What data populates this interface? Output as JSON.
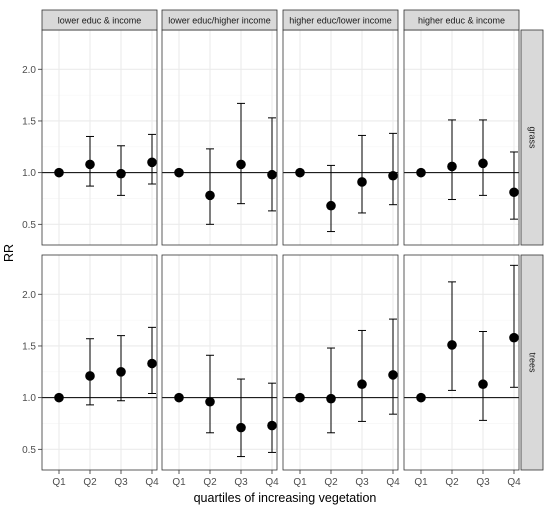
{
  "chart_data": {
    "type": "scatter",
    "subtype": "faceted point estimates with error bars",
    "ylabel": "RR",
    "xlabel": "quartiles of increasing vegetation",
    "categories": [
      "Q1",
      "Q2",
      "Q3",
      "Q4"
    ],
    "ylim": [
      0.3,
      2.38
    ],
    "yticks": [
      0.5,
      1.0,
      1.5,
      2.0
    ],
    "ytick_labels": [
      "0.5",
      "1.0",
      "1.5",
      "2.0"
    ],
    "reference_line": 1.0,
    "grid": true,
    "columns": [
      "lower educ & income",
      "lower educ/higher income",
      "higher educ/lower income",
      "higher educ & income"
    ],
    "rows": [
      "grass",
      "trees"
    ],
    "panels": [
      [
        {
          "rr": [
            1.0,
            1.08,
            0.99,
            1.1
          ],
          "lower": [
            null,
            0.87,
            0.78,
            0.89
          ],
          "upper": [
            null,
            1.35,
            1.26,
            1.37
          ]
        },
        {
          "rr": [
            1.0,
            0.78,
            1.08,
            0.98
          ],
          "lower": [
            null,
            0.5,
            0.7,
            0.63
          ],
          "upper": [
            null,
            1.23,
            1.67,
            1.53
          ]
        },
        {
          "rr": [
            1.0,
            0.68,
            0.91,
            0.97
          ],
          "lower": [
            null,
            0.43,
            0.61,
            0.69
          ],
          "upper": [
            null,
            1.07,
            1.36,
            1.38
          ]
        },
        {
          "rr": [
            1.0,
            1.06,
            1.09,
            0.81
          ],
          "lower": [
            null,
            0.74,
            0.78,
            0.55
          ],
          "upper": [
            null,
            1.51,
            1.51,
            1.2
          ]
        }
      ],
      [
        {
          "rr": [
            1.0,
            1.21,
            1.25,
            1.33
          ],
          "lower": [
            null,
            0.93,
            0.97,
            1.04
          ],
          "upper": [
            null,
            1.57,
            1.6,
            1.68
          ]
        },
        {
          "rr": [
            1.0,
            0.96,
            0.71,
            0.73
          ],
          "lower": [
            null,
            0.66,
            0.43,
            0.47
          ],
          "upper": [
            null,
            1.41,
            1.18,
            1.14
          ]
        },
        {
          "rr": [
            1.0,
            0.99,
            1.13,
            1.22
          ],
          "lower": [
            null,
            0.66,
            0.77,
            0.84
          ],
          "upper": [
            null,
            1.48,
            1.65,
            1.76
          ]
        },
        {
          "rr": [
            1.0,
            1.51,
            1.13,
            1.58
          ],
          "lower": [
            null,
            1.07,
            0.78,
            1.1
          ],
          "upper": [
            null,
            2.12,
            1.64,
            2.28
          ]
        }
      ]
    ]
  },
  "colors": {
    "strip_fill": "#d9d9d9",
    "panel_border": "#333333",
    "grid_major": "#ebebeb",
    "grid_minor": "#f5f5f5",
    "point": "#000000",
    "reference_line": "#000000"
  }
}
